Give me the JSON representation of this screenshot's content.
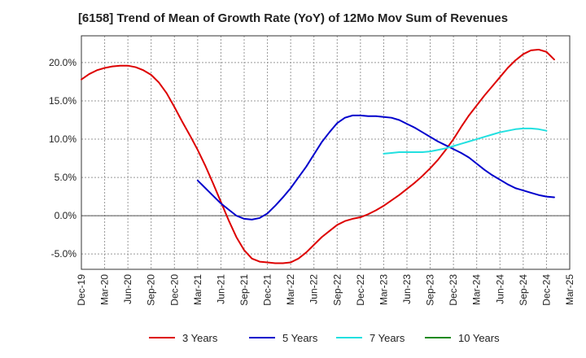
{
  "chart_data": {
    "type": "line",
    "title": "[6158]  Trend of Mean of Growth Rate (YoY) of 12Mo Mov Sum of Revenues",
    "xlabel": "",
    "ylabel": "",
    "x_ticks": [
      "Dec-19",
      "Mar-20",
      "Jun-20",
      "Sep-20",
      "Dec-20",
      "Mar-21",
      "Jun-21",
      "Sep-21",
      "Dec-21",
      "Mar-22",
      "Jun-22",
      "Sep-22",
      "Dec-22",
      "Mar-23",
      "Jun-23",
      "Sep-23",
      "Dec-23",
      "Mar-24",
      "Jun-24",
      "Sep-24",
      "Dec-24",
      "Mar-25"
    ],
    "y_ticks": [
      {
        "value": 20.0,
        "label": "20.0%"
      },
      {
        "value": 15.0,
        "label": "15.0%"
      },
      {
        "value": 10.0,
        "label": "10.0%"
      },
      {
        "value": 5.0,
        "label": "5.0%"
      },
      {
        "value": 0.0,
        "label": "0.0%"
      },
      {
        "value": -5.0,
        "label": "-5.0%"
      }
    ],
    "ylim": [
      -7,
      23.5
    ],
    "grid": true,
    "legend_position": "bottom",
    "series": [
      {
        "name": "3 Years",
        "color": "#dd0000",
        "start_index": 0,
        "values": [
          17.8,
          18.5,
          19.0,
          19.3,
          19.5,
          19.6,
          19.6,
          19.4,
          19.0,
          18.4,
          17.4,
          16.0,
          14.2,
          12.3,
          10.5,
          8.6,
          6.5,
          4.2,
          1.8,
          -0.6,
          -2.8,
          -4.5,
          -5.6,
          -6.0,
          -6.1,
          -6.2,
          -6.2,
          -6.1,
          -5.6,
          -4.8,
          -3.8,
          -2.8,
          -2.0,
          -1.2,
          -0.7,
          -0.4,
          -0.2,
          0.2,
          0.7,
          1.3,
          2.0,
          2.7,
          3.5,
          4.3,
          5.2,
          6.2,
          7.3,
          8.6,
          10.0,
          11.6,
          13.1,
          14.4,
          15.7,
          16.9,
          18.1,
          19.3,
          20.3,
          21.1,
          21.6,
          21.7,
          21.4,
          20.4
        ]
      },
      {
        "name": "5 Years",
        "color": "#0000cc",
        "start_index": 15,
        "values": [
          4.6,
          3.6,
          2.6,
          1.6,
          0.8,
          0.0,
          -0.4,
          -0.5,
          -0.3,
          0.3,
          1.3,
          2.4,
          3.6,
          5.0,
          6.4,
          8.0,
          9.6,
          10.9,
          12.1,
          12.8,
          13.1,
          13.1,
          13.0,
          13.0,
          12.9,
          12.8,
          12.5,
          12.0,
          11.5,
          10.9,
          10.3,
          9.7,
          9.2,
          8.7,
          8.2,
          7.6,
          6.8,
          6.0,
          5.3,
          4.7,
          4.1,
          3.6,
          3.3,
          3.0,
          2.7,
          2.5,
          2.4
        ]
      },
      {
        "name": "7 Years",
        "color": "#22e0e0",
        "start_index": 39,
        "values": [
          8.1,
          8.2,
          8.3,
          8.3,
          8.3,
          8.3,
          8.4,
          8.6,
          8.8,
          9.1,
          9.4,
          9.7,
          10.0,
          10.3,
          10.6,
          10.9,
          11.1,
          11.3,
          11.4,
          11.4,
          11.3,
          11.1
        ]
      },
      {
        "name": "10 Years",
        "color": "#1a8a1a",
        "start_index": 0,
        "values": []
      }
    ]
  }
}
